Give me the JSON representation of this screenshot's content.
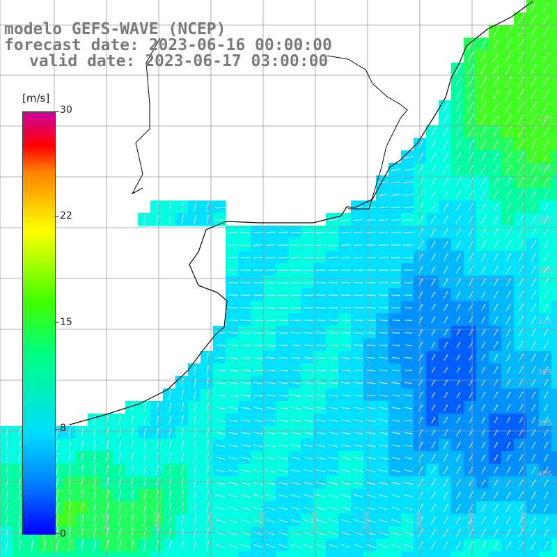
{
  "title": {
    "model": "modelo GEFS-WAVE (NCEP)",
    "forecast": "forecast date: 2023-06-16 00:00:00",
    "valid": "valid date: 2023-06-17 03:00:00"
  },
  "colorbar": {
    "unit": "[m/s]",
    "ticks": [
      "30",
      "22",
      "15",
      "8",
      "0"
    ],
    "colors": [
      "#0000ff",
      "#0080ff",
      "#00ddff",
      "#00ff80",
      "#40ff00",
      "#ffff00",
      "#ff8000",
      "#ff0000",
      "#d000a0"
    ]
  },
  "map": {
    "variable": "wind speed",
    "lat_labels": [
      "33S",
      "34S",
      "35S",
      "36S",
      "37S",
      "38S",
      "39S",
      "40S"
    ],
    "lon_labels": [
      "61W",
      "60W",
      "59W",
      "58W",
      "57W",
      "56W",
      "55W",
      "54W",
      "53W"
    ],
    "colors": {
      "land": "#ffffff",
      "coast": "#000000",
      "grid": "#999999",
      "arrows": "#ffffff"
    }
  }
}
